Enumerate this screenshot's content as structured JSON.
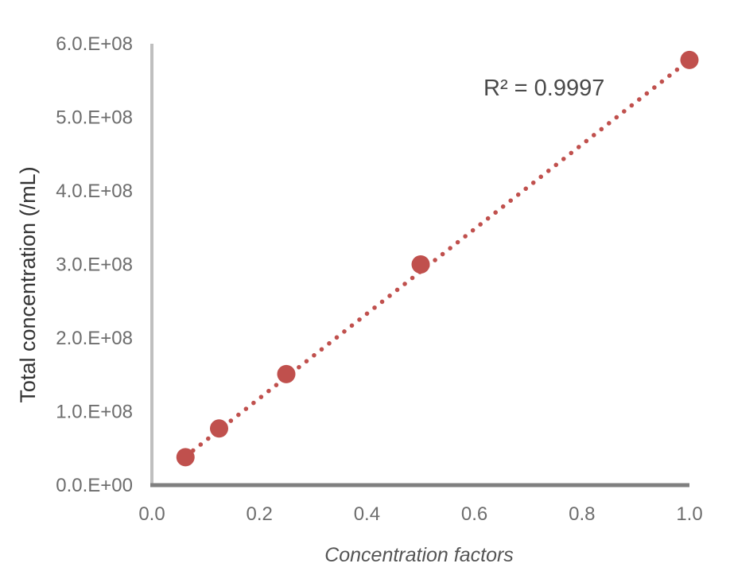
{
  "chart_data": {
    "type": "scatter",
    "title": "",
    "xlabel": "Concentration factors",
    "ylabel": "Total concentration (/mL)",
    "xlim": [
      0.0,
      1.0
    ],
    "ylim": [
      0,
      600000000
    ],
    "x_ticks": [
      0.0,
      0.2,
      0.4,
      0.6,
      0.8,
      1.0
    ],
    "x_tick_labels": [
      "0.0",
      "0.2",
      "0.4",
      "0.6",
      "0.8",
      "1.0"
    ],
    "y_ticks": [
      0,
      100000000,
      200000000,
      300000000,
      400000000,
      500000000,
      600000000
    ],
    "y_tick_labels": [
      "0.0.E+00",
      "1.0.E+08",
      "2.0.E+08",
      "3.0.E+08",
      "4.0.E+08",
      "5.0.E+08",
      "6.0.E+08"
    ],
    "grid": false,
    "legend": "none",
    "series": [
      {
        "x": [
          0.0625,
          0.125,
          0.25,
          0.5,
          1.0
        ],
        "y": [
          38000000,
          77000000,
          151000000,
          300000000,
          578000000
        ],
        "color": "#c0504d"
      }
    ],
    "trendline": {
      "style": "dotted",
      "color": "#c0504d",
      "x_range": [
        0.0625,
        1.0
      ],
      "slope": 575000000,
      "intercept": 3000000
    },
    "annotations": [
      {
        "text": "R² = 0.9997"
      }
    ],
    "axis_color": "#7f7f7f"
  }
}
